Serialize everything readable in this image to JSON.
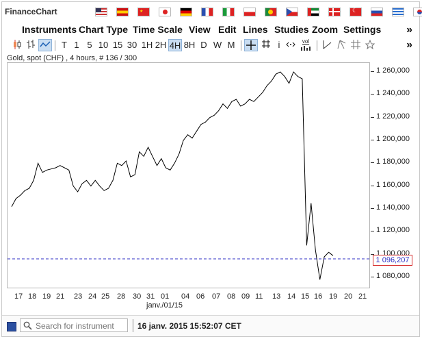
{
  "app": {
    "title": "FinanceChart"
  },
  "languages": [
    "en-us",
    "es",
    "zh",
    "ja",
    "de",
    "fr",
    "it",
    "pl",
    "pt",
    "cs",
    "ar",
    "da",
    "tr",
    "sk",
    "el",
    "ko"
  ],
  "menu": {
    "items": [
      "Instruments",
      "Chart Type",
      "Time Scale",
      "View",
      "Edit",
      "Lines",
      "Studies",
      "Zoom",
      "Settings"
    ],
    "more": "»"
  },
  "toolbar": {
    "more": "»",
    "scales": [
      "T",
      "1",
      "5",
      "10",
      "15",
      "30",
      "1H",
      "2H",
      "4H",
      "8H",
      "D",
      "W",
      "M"
    ],
    "active_scale": "4H",
    "info_label": "i",
    "vol_label": "vol"
  },
  "chart": {
    "info": "Gold, spot (CHF) , 4 hours, # 136 / 300",
    "current_price_label": "1 096,207",
    "month_label": "janv./01/15",
    "colors": {
      "line": "#000000",
      "reference": "#2e2ec4",
      "pricebox_border": "#d62828"
    }
  },
  "chart_data": {
    "type": "line",
    "title": "Gold, spot (CHF) , 4 hours, # 136 / 300",
    "ylim": [
      1070000,
      1270000
    ],
    "y_ticks": [
      "1 080,000",
      "1 100,000",
      "1 120,000",
      "1 140,000",
      "1 160,000",
      "1 180,000",
      "1 200,000",
      "1 220,000",
      "1 240,000",
      "1 260,000"
    ],
    "x_ticks": [
      "17",
      "18",
      "19",
      "21",
      "23",
      "24",
      "25",
      "28",
      "30",
      "31",
      "01",
      "04",
      "06",
      "07",
      "08",
      "09",
      "11",
      "13",
      "14",
      "15",
      "16",
      "19",
      "20",
      "21"
    ],
    "current_price": 1096207,
    "series": [
      {
        "values": [
          1142000,
          1149000,
          1152000,
          1156000,
          1158000,
          1165000,
          1180000,
          1172000,
          1174000,
          1175000,
          1176000,
          1178000,
          1176000,
          1174000,
          1160000,
          1155000,
          1162000,
          1165000,
          1160000,
          1165000,
          1160000,
          1156000,
          1158000,
          1165000,
          1180000,
          1178000,
          1182000,
          1168000,
          1170000,
          1190000,
          1186000,
          1194000,
          1186000,
          1178000,
          1184000,
          1176000,
          1174000,
          1180000,
          1188000,
          1200000,
          1205000,
          1202000,
          1208000,
          1214000,
          1216000,
          1220000,
          1222000,
          1226000,
          1232000,
          1228000,
          1234000,
          1236000,
          1230000,
          1232000,
          1236000,
          1234000,
          1238000,
          1242000,
          1248000,
          1252000,
          1258000,
          1260000,
          1256000,
          1250000,
          1260000,
          1256000,
          1254000,
          1108000,
          1145000,
          1104000,
          1078000,
          1098000,
          1102000,
          1099000
        ]
      }
    ]
  },
  "footer": {
    "search_placeholder": "Search for instrument",
    "datetime": "16 janv. 2015 15:52:07 CET"
  }
}
